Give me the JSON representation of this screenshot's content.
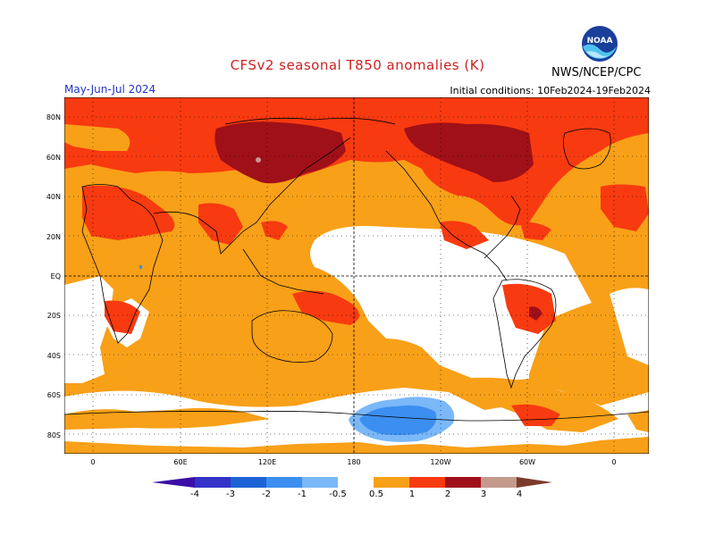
{
  "header": {
    "title": "CFSv2 seasonal T850 anomalies (K)",
    "season": "May-Jun-Jul 2024",
    "initial_conditions": "Initial conditions: 10Feb2024-19Feb2024",
    "agency": "NWS/NCEP/CPC",
    "logo_text": "NOAA"
  },
  "colors": {
    "title": "#cc2222",
    "season": "#2233cc",
    "ocean_white": "#ffffff",
    "c_0p5_1": "#f8a018",
    "c_1_2": "#f83a10",
    "c_2_3": "#a01018",
    "c_3_4": "#c49a8c",
    "neg_05_1": "#7ab8f8",
    "neg_1_2": "#3c8ef0"
  },
  "axes": {
    "lat_labels": [
      "80N",
      "60N",
      "40N",
      "20N",
      "EQ",
      "20S",
      "40S",
      "60S",
      "80S"
    ],
    "lon_labels": [
      "0",
      "60E",
      "120E",
      "180",
      "120W",
      "60W",
      "0"
    ]
  },
  "colorbar": {
    "labels": [
      "-4",
      "-3",
      "-2",
      "-1",
      "-0.5",
      "0.5",
      "1",
      "2",
      "3",
      "4"
    ],
    "colors": [
      "#3b0fa8",
      "#3333c8",
      "#1d63d6",
      "#3c8ef0",
      "#7ab8f8",
      "#ffffff",
      "#f8a018",
      "#f83a10",
      "#a01018",
      "#c49a8c",
      "#7a3b2c"
    ]
  }
}
